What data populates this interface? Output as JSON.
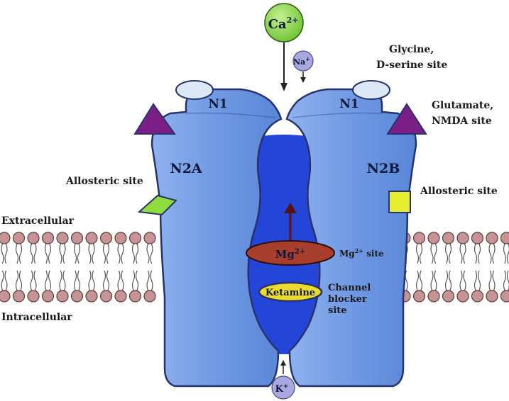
{
  "ions": {
    "calcium": {
      "base": "Ca",
      "charge": "2+"
    },
    "sodium": {
      "base": "Na",
      "charge": "+"
    },
    "potassium": {
      "base": "K",
      "charge": "+"
    },
    "magnesium": {
      "base": "Mg",
      "charge": "2+"
    }
  },
  "subunits": {
    "n1_left": "N1",
    "n1_right": "N1",
    "n2a": "N2A",
    "n2b": "N2B"
  },
  "labels": {
    "glycine_line1": "Glycine,",
    "glycine_line2": "D-serine site",
    "glutamate_line1": "Glutamate,",
    "glutamate_line2": "NMDA site",
    "allosteric_left": "Allosteric site",
    "allosteric_right": "Allosteric site",
    "extracellular": "Extracellular",
    "intracellular": "Intracellular",
    "mg_site_base": "Mg",
    "mg_site_charge": "2+",
    "mg_site_suffix": " site",
    "ketamine": "Ketamine",
    "channel_line1": "Channel",
    "channel_line2": "blocker",
    "channel_line3": "site"
  },
  "colors": {
    "receptor_fill": "#6f99e3",
    "channel_fill": "#2446d8",
    "calcium_fill": "#84d44a",
    "ion_small_fill": "#a9a8e0",
    "mg_fill": "#a83e2c",
    "ketamine_fill": "#eeda2a",
    "glutamate_fill": "#7b1f86",
    "allosteric_left_fill": "#8fdc3c",
    "allosteric_right_fill": "#e6ec2e",
    "glycine_fill": "#dde8f6",
    "lipid_head": "#c79495"
  }
}
